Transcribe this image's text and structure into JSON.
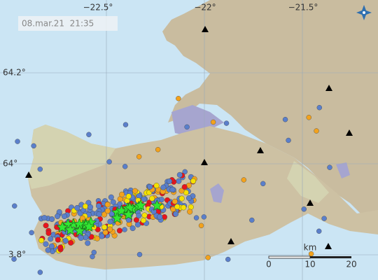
{
  "map": {
    "timestamp": "08.mar.21  21:35",
    "longitude_labels": [
      "−22.5°",
      "−22°",
      "−21.5°"
    ],
    "latitude_labels": [
      "64.2°",
      "64°",
      "3.8°"
    ],
    "scale": {
      "unit": "km",
      "ticks": [
        0,
        10,
        20
      ]
    }
  }
}
